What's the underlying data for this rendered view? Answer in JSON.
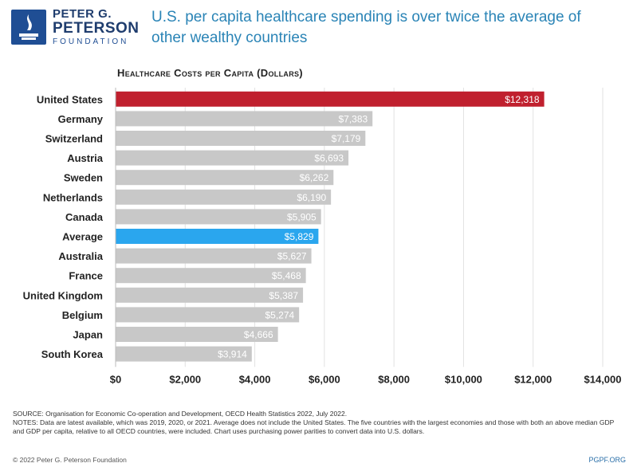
{
  "header": {
    "logo": {
      "line1": "PETER G.",
      "line2": "PETERSON",
      "line3": "FOUNDATION"
    },
    "title": "U.S. per capita healthcare spending is over twice the average of other wealthy countries"
  },
  "colors": {
    "us": "#c0202e",
    "average": "#2aa6ee",
    "other": "#c8c8c8",
    "grid": "#e2e2e2",
    "title": "#2a84b6"
  },
  "chart_data": {
    "type": "bar",
    "orientation": "horizontal",
    "title": "Healthcare Costs per Capita (Dollars)",
    "categories": [
      "United States",
      "Germany",
      "Switzerland",
      "Austria",
      "Sweden",
      "Netherlands",
      "Canada",
      "Average",
      "Australia",
      "France",
      "United Kingdom",
      "Belgium",
      "Japan",
      "South Korea"
    ],
    "values": [
      12318,
      7383,
      7179,
      6693,
      6262,
      6190,
      5905,
      5829,
      5627,
      5468,
      5387,
      5274,
      4666,
      3914
    ],
    "value_labels": [
      "$12,318",
      "$7,383",
      "$7,179",
      "$6,693",
      "$6,262",
      "$6,190",
      "$5,905",
      "$5,829",
      "$5,627",
      "$5,468",
      "$5,387",
      "$5,274",
      "$4,666",
      "$3,914"
    ],
    "highlight": {
      "United States": "us",
      "Average": "average"
    },
    "xlim": [
      0,
      14000
    ],
    "xticks": [
      0,
      2000,
      4000,
      6000,
      8000,
      10000,
      12000,
      14000
    ],
    "xtick_labels": [
      "$0",
      "$2,000",
      "$4,000",
      "$6,000",
      "$8,000",
      "$10,000",
      "$12,000",
      "$14,000"
    ],
    "grid": true
  },
  "footer": {
    "source": "SOURCE: Organisation for Economic Co-operation and Development, OECD Health Statistics 2022, July 2022.",
    "notes": "NOTES: Data are latest available, which was 2019, 2020, or 2021. Average does not include the United States. The five countries with the largest economies and those with both an above median GDP and GDP per capita, relative to all OECD countries, were included. Chart uses purchasing power parities to convert data into U.S. dollars.",
    "copyright": "© 2022 Peter G. Peterson Foundation",
    "url": "PGPF.ORG"
  }
}
